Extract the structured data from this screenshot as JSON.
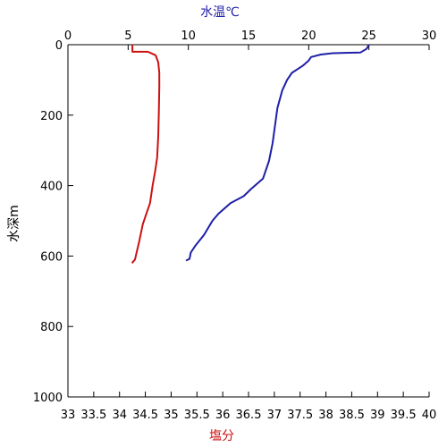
{
  "chart_data": {
    "type": "line",
    "top_axis": {
      "label": "水温℃",
      "color": "#1f1fa8",
      "range": [
        0,
        30
      ],
      "ticks": [
        "0",
        "5",
        "10",
        "15",
        "20",
        "25",
        "30"
      ]
    },
    "bottom_axis": {
      "label": "塩分",
      "color": "#cc1111",
      "range": [
        33,
        40
      ],
      "ticks": [
        "33",
        "33.5",
        "34",
        "34.5",
        "35",
        "35.5",
        "36",
        "36.5",
        "37",
        "37.5",
        "38",
        "38.5",
        "39",
        "39.5",
        "40"
      ]
    },
    "y_axis": {
      "label": "水深m",
      "range": [
        0,
        1000
      ],
      "inverted": true,
      "ticks": [
        "0",
        "200",
        "400",
        "600",
        "800",
        "1000"
      ]
    },
    "grid": false,
    "series": [
      {
        "axis": "bottom",
        "color": "#cc1111",
        "points": [
          [
            34.25,
            0
          ],
          [
            34.25,
            20
          ],
          [
            34.55,
            20
          ],
          [
            34.7,
            30
          ],
          [
            34.75,
            50
          ],
          [
            34.77,
            80
          ],
          [
            34.77,
            120
          ],
          [
            34.76,
            200
          ],
          [
            34.75,
            260
          ],
          [
            34.73,
            320
          ],
          [
            34.69,
            360
          ],
          [
            34.64,
            400
          ],
          [
            34.59,
            450
          ],
          [
            34.52,
            480
          ],
          [
            34.45,
            510
          ],
          [
            34.38,
            560
          ],
          [
            34.33,
            590
          ],
          [
            34.3,
            610
          ],
          [
            34.24,
            620
          ]
        ]
      },
      {
        "axis": "top",
        "color": "#1f1fa8",
        "points": [
          [
            25,
            0
          ],
          [
            24.8,
            12
          ],
          [
            24.3,
            22
          ],
          [
            23,
            23
          ],
          [
            22,
            24
          ],
          [
            21,
            28
          ],
          [
            20.2,
            35
          ],
          [
            20,
            45
          ],
          [
            19.5,
            60
          ],
          [
            18.6,
            80
          ],
          [
            18.2,
            100
          ],
          [
            17.8,
            130
          ],
          [
            17.4,
            180
          ],
          [
            17.2,
            230
          ],
          [
            17,
            280
          ],
          [
            16.7,
            330
          ],
          [
            16.2,
            380
          ],
          [
            15.2,
            410
          ],
          [
            14.6,
            430
          ],
          [
            13.5,
            450
          ],
          [
            12.5,
            480
          ],
          [
            12,
            500
          ],
          [
            11.3,
            540
          ],
          [
            10.6,
            570
          ],
          [
            10.2,
            590
          ],
          [
            10.1,
            608
          ],
          [
            9.8,
            613
          ]
        ]
      }
    ]
  }
}
